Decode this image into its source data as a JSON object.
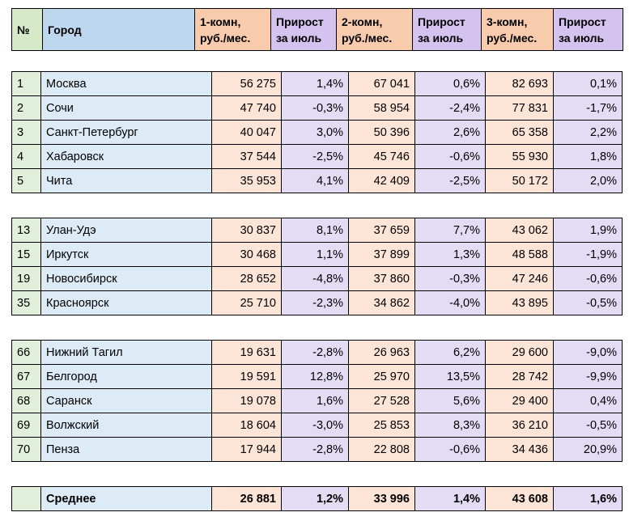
{
  "table": {
    "header": [
      "№",
      "Город",
      "1-комн,\nруб./мес.",
      "Прирост\nза июль",
      "2-комн,\nруб./мес.",
      "Прирост\nза июль",
      "3-комн,\nруб./мес.",
      "Прирост\nза июль"
    ],
    "groups": [
      [
        [
          "1",
          "Москва",
          "56 275",
          "1,4%",
          "67 041",
          "0,6%",
          "82 693",
          "0,1%"
        ],
        [
          "2",
          "Сочи",
          "47 740",
          "-0,3%",
          "58 954",
          "-2,4%",
          "77 831",
          "-1,7%"
        ],
        [
          "3",
          "Санкт-Петербург",
          "40 047",
          "3,0%",
          "50 396",
          "2,6%",
          "65 358",
          "2,2%"
        ],
        [
          "4",
          "Хабаровск",
          "37 544",
          "-2,5%",
          "45 746",
          "-0,6%",
          "55 930",
          "1,8%"
        ],
        [
          "5",
          "Чита",
          "35 953",
          "4,1%",
          "42 409",
          "-2,5%",
          "50 172",
          "2,0%"
        ]
      ],
      [
        [
          "13",
          "Улан-Удэ",
          "30 837",
          "8,1%",
          "37 659",
          "7,7%",
          "43 062",
          "1,9%"
        ],
        [
          "15",
          "Иркутск",
          "30 468",
          "1,1%",
          "37 899",
          "1,3%",
          "48 588",
          "-1,9%"
        ],
        [
          "19",
          "Новосибирск",
          "28 652",
          "-4,8%",
          "37 860",
          "-0,3%",
          "47 246",
          "-0,6%"
        ],
        [
          "35",
          "Красноярск",
          "25 710",
          "-2,3%",
          "34 862",
          "-4,0%",
          "43 895",
          "-0,5%"
        ]
      ],
      [
        [
          "66",
          "Нижний Тагил",
          "19 631",
          "-2,8%",
          "26 963",
          "6,2%",
          "29 600",
          "-9,0%"
        ],
        [
          "67",
          "Белгород",
          "19 591",
          "12,8%",
          "25 970",
          "13,5%",
          "28 742",
          "-9,9%"
        ],
        [
          "68",
          "Саранск",
          "19 078",
          "1,6%",
          "27 528",
          "5,6%",
          "29 400",
          "0,4%"
        ],
        [
          "69",
          "Волжский",
          "18 604",
          "-3,0%",
          "25 853",
          "8,3%",
          "36 210",
          "-0,5%"
        ],
        [
          "70",
          "Пенза",
          "17 944",
          "-2,8%",
          "22 808",
          "-0,6%",
          "34 436",
          "20,9%"
        ]
      ]
    ],
    "average": {
      "label": "Среднее",
      "values": [
        "26 881",
        "1,2%",
        "33 996",
        "1,4%",
        "43 608",
        "1,6%"
      ]
    }
  }
}
